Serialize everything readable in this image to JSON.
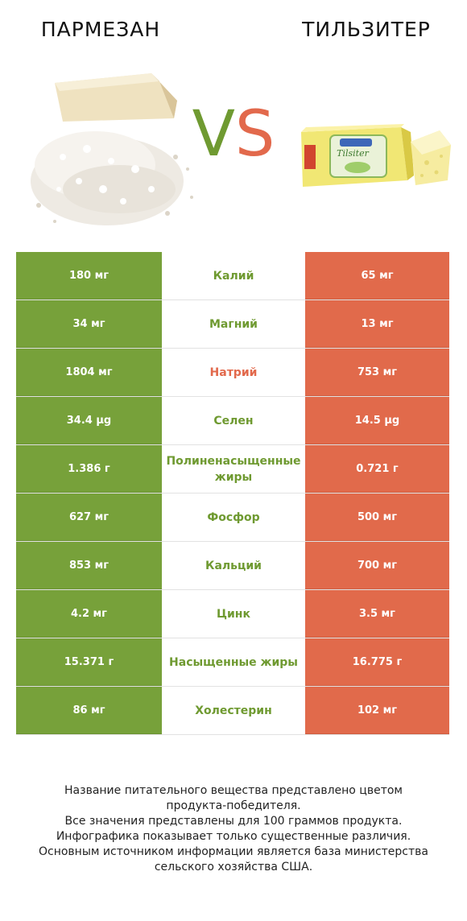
{
  "header": {
    "left_title": "ПАРМЕЗАН",
    "right_title": "ТИЛЬЗИТЕР",
    "vs_v": "V",
    "vs_s": "S"
  },
  "product_label": "Tilsiter",
  "colors": {
    "left_winner": "#77a13a",
    "right_winner": "#e16a4b",
    "left_name": "#6f9a31",
    "right_name": "#e2694c"
  },
  "rows": [
    {
      "left": "180 мг",
      "name": "Калий",
      "right": "65 мг",
      "winner": "left"
    },
    {
      "left": "34 мг",
      "name": "Магний",
      "right": "13 мг",
      "winner": "left"
    },
    {
      "left": "1804 мг",
      "name": "Натрий",
      "right": "753 мг",
      "winner": "right"
    },
    {
      "left": "34.4 µg",
      "name": "Селен",
      "right": "14.5 µg",
      "winner": "left"
    },
    {
      "left": "1.386 г",
      "name": "Полиненасыщенные жиры",
      "right": "0.721 г",
      "winner": "left"
    },
    {
      "left": "627 мг",
      "name": "Фосфор",
      "right": "500 мг",
      "winner": "left"
    },
    {
      "left": "853 мг",
      "name": "Кальций",
      "right": "700 мг",
      "winner": "left"
    },
    {
      "left": "4.2 мг",
      "name": "Цинк",
      "right": "3.5 мг",
      "winner": "left"
    },
    {
      "left": "15.371 г",
      "name": "Насыщенные жиры",
      "right": "16.775 г",
      "winner": "left"
    },
    {
      "left": "86 мг",
      "name": "Холестерин",
      "right": "102 мг",
      "winner": "left"
    }
  ],
  "footer": [
    "Название питательного вещества представлено цветом",
    "продукта-победителя.",
    "Все значения представлены для 100 граммов продукта.",
    "Инфографика показывает только существенные различия.",
    "Основным источником информации является база министерства",
    "сельского хозяйства США."
  ]
}
